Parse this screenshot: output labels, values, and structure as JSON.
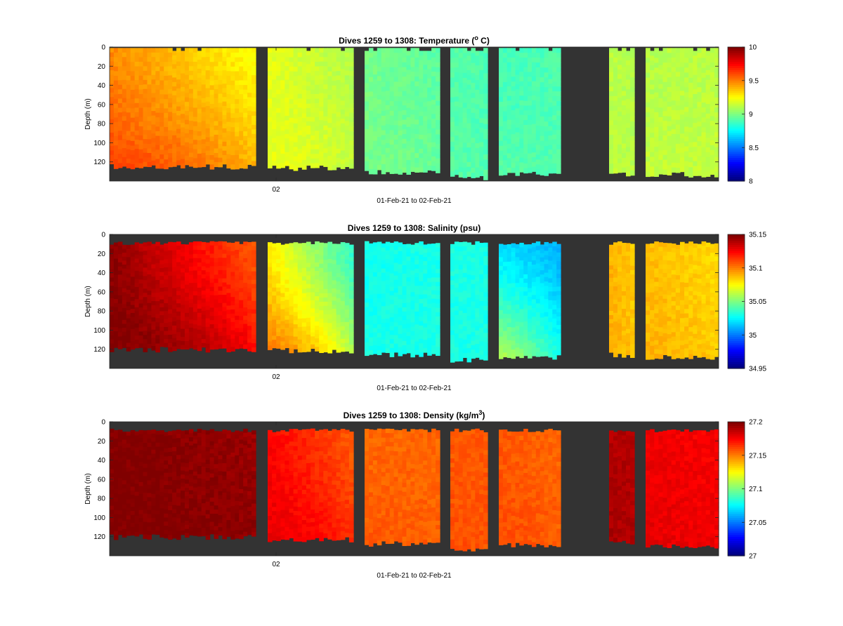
{
  "chart_data": [
    {
      "type": "heatmap",
      "title": "Dives 1259 to 1308: Temperature (",
      "title_sup": "o",
      "title_end": " C)",
      "ylabel": "Depth (m)",
      "xlabel": "01-Feb-21 to 02-Feb-21",
      "x_tick_labels": [
        "02"
      ],
      "y_ticks": [
        0,
        20,
        40,
        60,
        80,
        100,
        120
      ],
      "ylim": [
        0,
        140
      ],
      "y_reversed": true,
      "colormap": "jet",
      "clim": [
        8,
        10
      ],
      "colorbar_ticks": [
        "8",
        "8.5",
        "9",
        "9.5",
        "10"
      ],
      "colorbar_tick_values": [
        8,
        8.5,
        9,
        9.5,
        10
      ],
      "background_color": "#333333",
      "segments": [
        {
          "value_start": 9.48,
          "value_end": 9.25,
          "value_bottom": 9.62,
          "max_depth": 126
        },
        {
          "value_start": 9.2,
          "value_end": 9.1,
          "value_bottom": 9.2,
          "max_depth": 127
        },
        {
          "value_start": 8.98,
          "value_end": 8.93,
          "value_bottom": 8.98,
          "max_depth": 131
        },
        {
          "value_start": 8.92,
          "value_end": 8.9,
          "value_bottom": 8.92,
          "max_depth": 137
        },
        {
          "value_start": 8.88,
          "value_end": 8.9,
          "value_bottom": 8.92,
          "max_depth": 133
        },
        {
          "value_start": 9.12,
          "value_end": 9.1,
          "value_bottom": 9.12,
          "max_depth": 133
        },
        {
          "value_start": 9.1,
          "value_end": 9.12,
          "value_bottom": 9.14,
          "max_depth": 134
        }
      ]
    },
    {
      "type": "heatmap",
      "title": "Dives 1259 to 1308: Salinity (psu)",
      "ylabel": "Depth (m)",
      "xlabel": "01-Feb-21 to 02-Feb-21",
      "x_tick_labels": [
        "02"
      ],
      "y_ticks": [
        0,
        20,
        40,
        60,
        80,
        100,
        120
      ],
      "ylim": [
        0,
        140
      ],
      "y_reversed": true,
      "colormap": "jet",
      "clim": [
        34.95,
        35.15
      ],
      "colorbar_ticks": [
        "34.95",
        "35",
        "35.05",
        "35.1",
        "35.15"
      ],
      "colorbar_tick_values": [
        34.95,
        35.0,
        35.05,
        35.1,
        35.15
      ],
      "background_color": "#333333",
      "segments": [
        {
          "value_start": 35.148,
          "value_end": 35.108,
          "value_bottom": 35.15,
          "max_depth": 121
        },
        {
          "value_start": 35.078,
          "value_end": 35.035,
          "value_bottom": 35.1,
          "max_depth": 122
        },
        {
          "value_start": 35.028,
          "value_end": 35.03,
          "value_bottom": 35.03,
          "max_depth": 127
        },
        {
          "value_start": 35.03,
          "value_end": 35.03,
          "value_bottom": 35.03,
          "max_depth": 132
        },
        {
          "value_start": 35.02,
          "value_end": 35.01,
          "value_bottom": 35.06,
          "max_depth": 129
        },
        {
          "value_start": 35.09,
          "value_end": 35.085,
          "value_bottom": 35.09,
          "max_depth": 127
        },
        {
          "value_start": 35.088,
          "value_end": 35.082,
          "value_bottom": 35.09,
          "max_depth": 129
        }
      ]
    },
    {
      "type": "heatmap",
      "title": "Dives 1259 to 1308: Density (kg/m",
      "title_sup": "3",
      "title_end": ")",
      "ylabel": "Depth (m)",
      "xlabel": "01-Feb-21 to 02-Feb-21",
      "x_tick_labels": [
        "02"
      ],
      "y_ticks": [
        0,
        20,
        40,
        60,
        80,
        100,
        120
      ],
      "ylim": [
        0,
        140
      ],
      "y_reversed": true,
      "colormap": "jet",
      "clim": [
        27.0,
        27.2
      ],
      "colorbar_ticks": [
        "27",
        "27.05",
        "27.1",
        "27.15",
        "27.2"
      ],
      "colorbar_tick_values": [
        27.0,
        27.05,
        27.1,
        27.15,
        27.2
      ],
      "background_color": "#333333",
      "segments": [
        {
          "value_start": 27.2,
          "value_end": 27.195,
          "value_bottom": 27.2,
          "max_depth": 121
        },
        {
          "value_start": 27.175,
          "value_end": 27.158,
          "value_bottom": 27.18,
          "max_depth": 124
        },
        {
          "value_start": 27.155,
          "value_end": 27.155,
          "value_bottom": 27.158,
          "max_depth": 128
        },
        {
          "value_start": 27.158,
          "value_end": 27.158,
          "value_bottom": 27.16,
          "max_depth": 133
        },
        {
          "value_start": 27.158,
          "value_end": 27.155,
          "value_bottom": 27.16,
          "max_depth": 129
        },
        {
          "value_start": 27.19,
          "value_end": 27.19,
          "value_bottom": 27.192,
          "max_depth": 127
        },
        {
          "value_start": 27.178,
          "value_end": 27.176,
          "value_bottom": 27.18,
          "max_depth": 130
        }
      ]
    }
  ]
}
